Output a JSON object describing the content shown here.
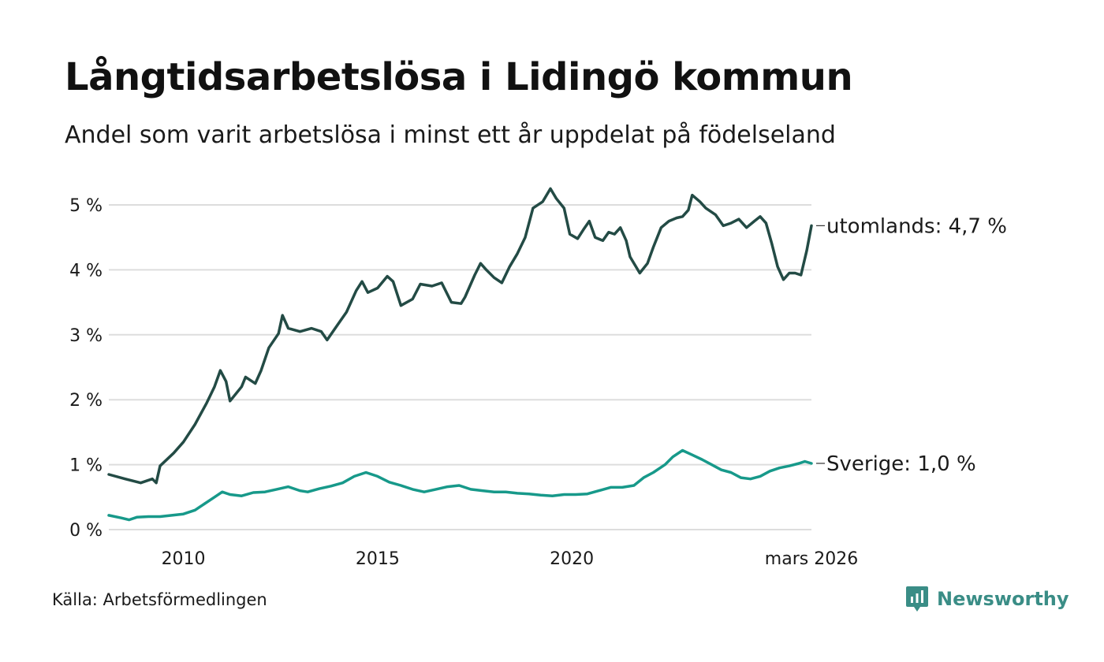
{
  "header": {
    "title": "Långtidsarbetslösa i Lidingö kommun",
    "subtitle": "Andel som varit arbetslösa i minst ett år uppdelat på födelseland"
  },
  "footer": {
    "source": "Källa: Arbetsförmedlingen",
    "brand": "Newsworthy"
  },
  "colors": {
    "utomlands": "#234b45",
    "sverige": "#17998a",
    "grid": "#dddddd",
    "brand": "#3a8d86"
  },
  "chart_data": {
    "type": "line",
    "title": "Långtidsarbetslösa i Lidingö kommun",
    "subtitle": "Andel som varit arbetslösa i minst ett år uppdelat på födelseland",
    "xlabel": "",
    "ylabel": "",
    "ylim": [
      0,
      5.2
    ],
    "y_ticks": [
      0,
      1,
      2,
      3,
      4,
      5
    ],
    "y_tick_labels": [
      "0 %",
      "1 %",
      "2 %",
      "3 %",
      "4 %",
      "5 %"
    ],
    "x_range": [
      2008.08,
      2026.17
    ],
    "x_ticks": [
      2010,
      2015,
      2020,
      2026.17
    ],
    "x_tick_labels": [
      "2010",
      "2015",
      "2020",
      "mars 2026"
    ],
    "grid": true,
    "series": [
      {
        "name": "utomlands",
        "end_label": "utomlands: 4,7 %",
        "points": [
          [
            2008.08,
            0.85
          ],
          [
            2008.5,
            0.78
          ],
          [
            2008.9,
            0.72
          ],
          [
            2009.2,
            0.78
          ],
          [
            2009.3,
            0.72
          ],
          [
            2009.4,
            0.98
          ],
          [
            2009.75,
            1.18
          ],
          [
            2010.0,
            1.35
          ],
          [
            2010.3,
            1.62
          ],
          [
            2010.6,
            1.95
          ],
          [
            2010.8,
            2.2
          ],
          [
            2010.95,
            2.45
          ],
          [
            2011.1,
            2.28
          ],
          [
            2011.2,
            1.98
          ],
          [
            2011.5,
            2.2
          ],
          [
            2011.6,
            2.35
          ],
          [
            2011.85,
            2.25
          ],
          [
            2012.0,
            2.45
          ],
          [
            2012.2,
            2.8
          ],
          [
            2012.45,
            3.02
          ],
          [
            2012.55,
            3.3
          ],
          [
            2012.7,
            3.1
          ],
          [
            2013.0,
            3.05
          ],
          [
            2013.3,
            3.1
          ],
          [
            2013.55,
            3.05
          ],
          [
            2013.7,
            2.92
          ],
          [
            2014.0,
            3.18
          ],
          [
            2014.2,
            3.35
          ],
          [
            2014.45,
            3.68
          ],
          [
            2014.6,
            3.82
          ],
          [
            2014.75,
            3.65
          ],
          [
            2015.0,
            3.72
          ],
          [
            2015.25,
            3.9
          ],
          [
            2015.4,
            3.82
          ],
          [
            2015.6,
            3.45
          ],
          [
            2015.9,
            3.55
          ],
          [
            2016.1,
            3.78
          ],
          [
            2016.4,
            3.75
          ],
          [
            2016.65,
            3.8
          ],
          [
            2016.9,
            3.5
          ],
          [
            2017.15,
            3.48
          ],
          [
            2017.25,
            3.58
          ],
          [
            2017.5,
            3.92
          ],
          [
            2017.65,
            4.1
          ],
          [
            2017.8,
            4.0
          ],
          [
            2018.0,
            3.88
          ],
          [
            2018.2,
            3.8
          ],
          [
            2018.4,
            4.05
          ],
          [
            2018.6,
            4.25
          ],
          [
            2018.8,
            4.5
          ],
          [
            2019.0,
            4.95
          ],
          [
            2019.25,
            5.05
          ],
          [
            2019.45,
            5.25
          ],
          [
            2019.6,
            5.1
          ],
          [
            2019.8,
            4.95
          ],
          [
            2019.95,
            4.55
          ],
          [
            2020.15,
            4.48
          ],
          [
            2020.3,
            4.62
          ],
          [
            2020.45,
            4.75
          ],
          [
            2020.6,
            4.5
          ],
          [
            2020.8,
            4.45
          ],
          [
            2020.95,
            4.58
          ],
          [
            2021.1,
            4.55
          ],
          [
            2021.25,
            4.65
          ],
          [
            2021.4,
            4.45
          ],
          [
            2021.5,
            4.2
          ],
          [
            2021.75,
            3.95
          ],
          [
            2021.95,
            4.1
          ],
          [
            2022.1,
            4.35
          ],
          [
            2022.3,
            4.65
          ],
          [
            2022.5,
            4.75
          ],
          [
            2022.7,
            4.8
          ],
          [
            2022.85,
            4.82
          ],
          [
            2023.0,
            4.92
          ],
          [
            2023.1,
            5.15
          ],
          [
            2023.3,
            5.05
          ],
          [
            2023.45,
            4.95
          ],
          [
            2023.7,
            4.85
          ],
          [
            2023.9,
            4.68
          ],
          [
            2024.1,
            4.72
          ],
          [
            2024.3,
            4.78
          ],
          [
            2024.5,
            4.65
          ],
          [
            2024.7,
            4.75
          ],
          [
            2024.85,
            4.82
          ],
          [
            2025.0,
            4.72
          ],
          [
            2025.15,
            4.4
          ],
          [
            2025.3,
            4.05
          ],
          [
            2025.45,
            3.85
          ],
          [
            2025.6,
            3.95
          ],
          [
            2025.75,
            3.95
          ],
          [
            2025.9,
            3.92
          ],
          [
            2026.05,
            4.3
          ],
          [
            2026.17,
            4.68
          ]
        ]
      },
      {
        "name": "Sverige",
        "end_label": "Sverige: 1,0 %",
        "points": [
          [
            2008.08,
            0.22
          ],
          [
            2008.4,
            0.18
          ],
          [
            2008.6,
            0.15
          ],
          [
            2008.8,
            0.19
          ],
          [
            2009.1,
            0.2
          ],
          [
            2009.4,
            0.2
          ],
          [
            2009.7,
            0.22
          ],
          [
            2010.0,
            0.24
          ],
          [
            2010.3,
            0.3
          ],
          [
            2010.55,
            0.4
          ],
          [
            2010.8,
            0.5
          ],
          [
            2011.0,
            0.58
          ],
          [
            2011.2,
            0.54
          ],
          [
            2011.5,
            0.52
          ],
          [
            2011.8,
            0.57
          ],
          [
            2012.1,
            0.58
          ],
          [
            2012.4,
            0.62
          ],
          [
            2012.7,
            0.66
          ],
          [
            2013.0,
            0.6
          ],
          [
            2013.2,
            0.58
          ],
          [
            2013.5,
            0.63
          ],
          [
            2013.8,
            0.67
          ],
          [
            2014.1,
            0.72
          ],
          [
            2014.4,
            0.82
          ],
          [
            2014.7,
            0.88
          ],
          [
            2015.0,
            0.82
          ],
          [
            2015.3,
            0.73
          ],
          [
            2015.6,
            0.68
          ],
          [
            2015.9,
            0.62
          ],
          [
            2016.2,
            0.58
          ],
          [
            2016.5,
            0.62
          ],
          [
            2016.8,
            0.66
          ],
          [
            2017.1,
            0.68
          ],
          [
            2017.4,
            0.62
          ],
          [
            2017.7,
            0.6
          ],
          [
            2018.0,
            0.58
          ],
          [
            2018.3,
            0.58
          ],
          [
            2018.6,
            0.56
          ],
          [
            2018.9,
            0.55
          ],
          [
            2019.2,
            0.53
          ],
          [
            2019.5,
            0.52
          ],
          [
            2019.8,
            0.54
          ],
          [
            2020.1,
            0.54
          ],
          [
            2020.4,
            0.55
          ],
          [
            2020.7,
            0.6
          ],
          [
            2021.0,
            0.65
          ],
          [
            2021.3,
            0.65
          ],
          [
            2021.6,
            0.68
          ],
          [
            2021.85,
            0.8
          ],
          [
            2022.1,
            0.88
          ],
          [
            2022.4,
            1.0
          ],
          [
            2022.6,
            1.12
          ],
          [
            2022.85,
            1.22
          ],
          [
            2023.1,
            1.15
          ],
          [
            2023.35,
            1.08
          ],
          [
            2023.6,
            1.0
          ],
          [
            2023.85,
            0.92
          ],
          [
            2024.1,
            0.88
          ],
          [
            2024.35,
            0.8
          ],
          [
            2024.6,
            0.78
          ],
          [
            2024.85,
            0.82
          ],
          [
            2025.1,
            0.9
          ],
          [
            2025.35,
            0.95
          ],
          [
            2025.6,
            0.98
          ],
          [
            2025.85,
            1.02
          ],
          [
            2026.0,
            1.05
          ],
          [
            2026.17,
            1.02
          ]
        ]
      }
    ]
  }
}
